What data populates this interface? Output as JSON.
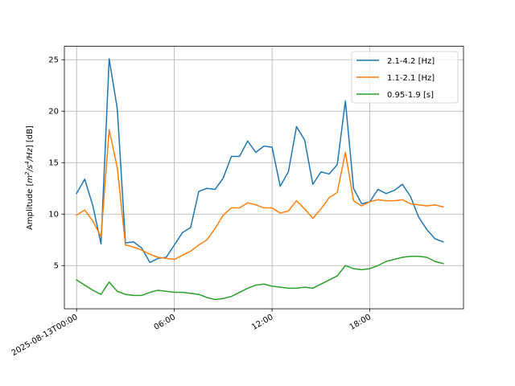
{
  "chart_data": {
    "type": "line",
    "title": "",
    "xlabel": "",
    "ylabel": "Amplitude [m²/s⁴/Hz] [dB]",
    "ylabel_parts": {
      "prefix": "Amplitude [",
      "m": "m",
      "sup2": "2",
      "slash1": "/",
      "s": "s",
      "sup4": "4",
      "slash2": "/",
      "hz": "Hz",
      "suffix": "] [dB]"
    },
    "xlim": [
      -0.75,
      23.75
    ],
    "ylim": [
      0.8,
      26.3
    ],
    "x_ticks": [
      {
        "value": 0,
        "label": "2025-08-13T00:00"
      },
      {
        "value": 6,
        "label": "06:00"
      },
      {
        "value": 12,
        "label": "12:00"
      },
      {
        "value": 18,
        "label": "18:00"
      }
    ],
    "y_ticks": [
      {
        "value": 5,
        "label": "5"
      },
      {
        "value": 10,
        "label": "10"
      },
      {
        "value": 15,
        "label": "15"
      },
      {
        "value": 20,
        "label": "20"
      },
      {
        "value": 25,
        "label": "25"
      }
    ],
    "grid": true,
    "legend_position": "top-right",
    "x": [
      0,
      0.5,
      1,
      1.5,
      2,
      2.5,
      3,
      3.5,
      4,
      4.5,
      5,
      5.5,
      6,
      6.5,
      7,
      7.5,
      8,
      8.5,
      9,
      9.5,
      10,
      10.5,
      11,
      11.5,
      12,
      12.5,
      13,
      13.5,
      14,
      14.5,
      15,
      15.5,
      16,
      16.5,
      17,
      17.5,
      18,
      18.5,
      19,
      19.5,
      20,
      20.5,
      21,
      21.5,
      22,
      22.5
    ],
    "series": [
      {
        "name": "2.1-4.2 [Hz]",
        "color": "#1f77b4",
        "values": [
          12.0,
          13.4,
          10.8,
          7.1,
          25.1,
          20.2,
          7.2,
          7.3,
          6.7,
          5.3,
          5.7,
          5.8,
          7.0,
          8.2,
          8.7,
          12.2,
          12.5,
          12.4,
          13.5,
          15.6,
          15.6,
          17.1,
          16.0,
          16.6,
          16.5,
          12.7,
          14.1,
          18.5,
          17.2,
          12.9,
          14.1,
          13.9,
          14.8,
          21.0,
          12.5,
          11.0,
          11.2,
          12.4,
          12.0,
          12.3,
          12.9,
          11.7,
          9.7,
          8.5,
          7.6,
          7.3
        ]
      },
      {
        "name": "1.1-2.1 [Hz]",
        "color": "#ff7f0e",
        "values": [
          9.9,
          10.4,
          9.3,
          7.8,
          18.2,
          14.5,
          7.0,
          6.8,
          6.5,
          6.1,
          5.8,
          5.7,
          5.6,
          6.0,
          6.4,
          7.0,
          7.5,
          8.6,
          9.9,
          10.6,
          10.6,
          11.1,
          10.9,
          10.6,
          10.6,
          10.1,
          10.3,
          11.3,
          10.5,
          9.6,
          10.5,
          11.6,
          12.1,
          16.0,
          11.3,
          10.8,
          11.2,
          11.4,
          11.3,
          11.3,
          11.4,
          11.0,
          10.9,
          10.8,
          10.9,
          10.7
        ]
      },
      {
        "name": "0.95-1.9 [s]",
        "color": "#2ca02c",
        "values": [
          3.6,
          3.1,
          2.6,
          2.2,
          3.4,
          2.5,
          2.2,
          2.1,
          2.1,
          2.4,
          2.6,
          2.5,
          2.4,
          2.4,
          2.3,
          2.2,
          1.9,
          1.7,
          1.8,
          2.0,
          2.4,
          2.8,
          3.1,
          3.2,
          3.0,
          2.9,
          2.8,
          2.8,
          2.9,
          2.8,
          3.2,
          3.6,
          4.0,
          5.0,
          4.7,
          4.6,
          4.7,
          5.0,
          5.4,
          5.6,
          5.8,
          5.9,
          5.9,
          5.8,
          5.4,
          5.2
        ]
      }
    ]
  }
}
